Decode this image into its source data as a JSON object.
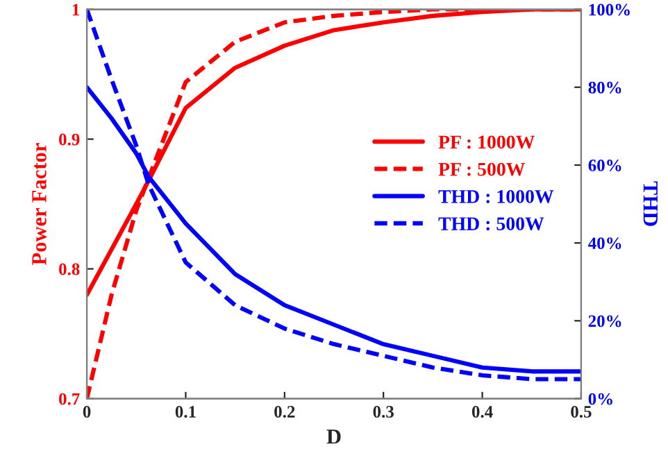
{
  "chart_data": {
    "type": "line",
    "xlabel": "D",
    "ylabel": "Power Factor",
    "y2label": "THD",
    "xlim": [
      0,
      0.5
    ],
    "xticks": [
      0,
      0.1,
      0.2,
      0.3,
      0.4,
      0.5
    ],
    "ylim": [
      0.7,
      1
    ],
    "yticks": [
      0.7,
      0.8,
      0.9,
      1
    ],
    "y2lim": [
      0,
      100
    ],
    "y2ticks": [
      {
        "value": 0,
        "label": "0%"
      },
      {
        "value": 20,
        "label": "20%"
      },
      {
        "value": 40,
        "label": "40%"
      },
      {
        "value": 60,
        "label": "60%"
      },
      {
        "value": 80,
        "label": "80%"
      },
      {
        "value": 100,
        "label": "100%"
      }
    ],
    "grid": false,
    "legend": "right",
    "marker": "none",
    "series": [
      {
        "name": "PF : 1000W",
        "color": "#ff0000",
        "line_style": "solid",
        "x": [
          0,
          0.025,
          0.05,
          0.0625,
          0.1,
          0.15,
          0.2,
          0.25,
          0.3,
          0.35,
          0.4,
          0.45,
          0.5
        ],
        "values": [
          0.78,
          0.815,
          0.85,
          0.868,
          0.924,
          0.955,
          0.972,
          0.984,
          0.99,
          0.995,
          0.998,
          1.0,
          1.0
        ]
      },
      {
        "name": "PF : 500W",
        "color": "#ff0000",
        "line_style": "dashed",
        "x": [
          0,
          0.025,
          0.05,
          0.0625,
          0.1,
          0.15,
          0.2,
          0.25,
          0.3,
          0.35,
          0.4,
          0.45,
          0.5
        ],
        "values": [
          0.7,
          0.78,
          0.845,
          0.87,
          0.944,
          0.975,
          0.99,
          0.995,
          0.998,
          1.0,
          1.0,
          1.0,
          1.0
        ]
      },
      {
        "name": "THD : 1000W",
        "color": "#0000ff",
        "line_style": "solid",
        "axis": "y2",
        "x": [
          0,
          0.025,
          0.05,
          0.0625,
          0.1,
          0.15,
          0.2,
          0.25,
          0.3,
          0.35,
          0.4,
          0.45,
          0.5
        ],
        "values": [
          80,
          72,
          63,
          57,
          45,
          32,
          24,
          19,
          14,
          11,
          8,
          7,
          7
        ]
      },
      {
        "name": "THD : 500W",
        "color": "#0000ff",
        "line_style": "dashed",
        "axis": "y2",
        "x": [
          0,
          0.025,
          0.05,
          0.0625,
          0.1,
          0.15,
          0.2,
          0.25,
          0.3,
          0.35,
          0.4,
          0.45,
          0.5
        ],
        "values": [
          100,
          82,
          65,
          55,
          35,
          24,
          18,
          14,
          11,
          8,
          6,
          5,
          5
        ]
      }
    ]
  }
}
